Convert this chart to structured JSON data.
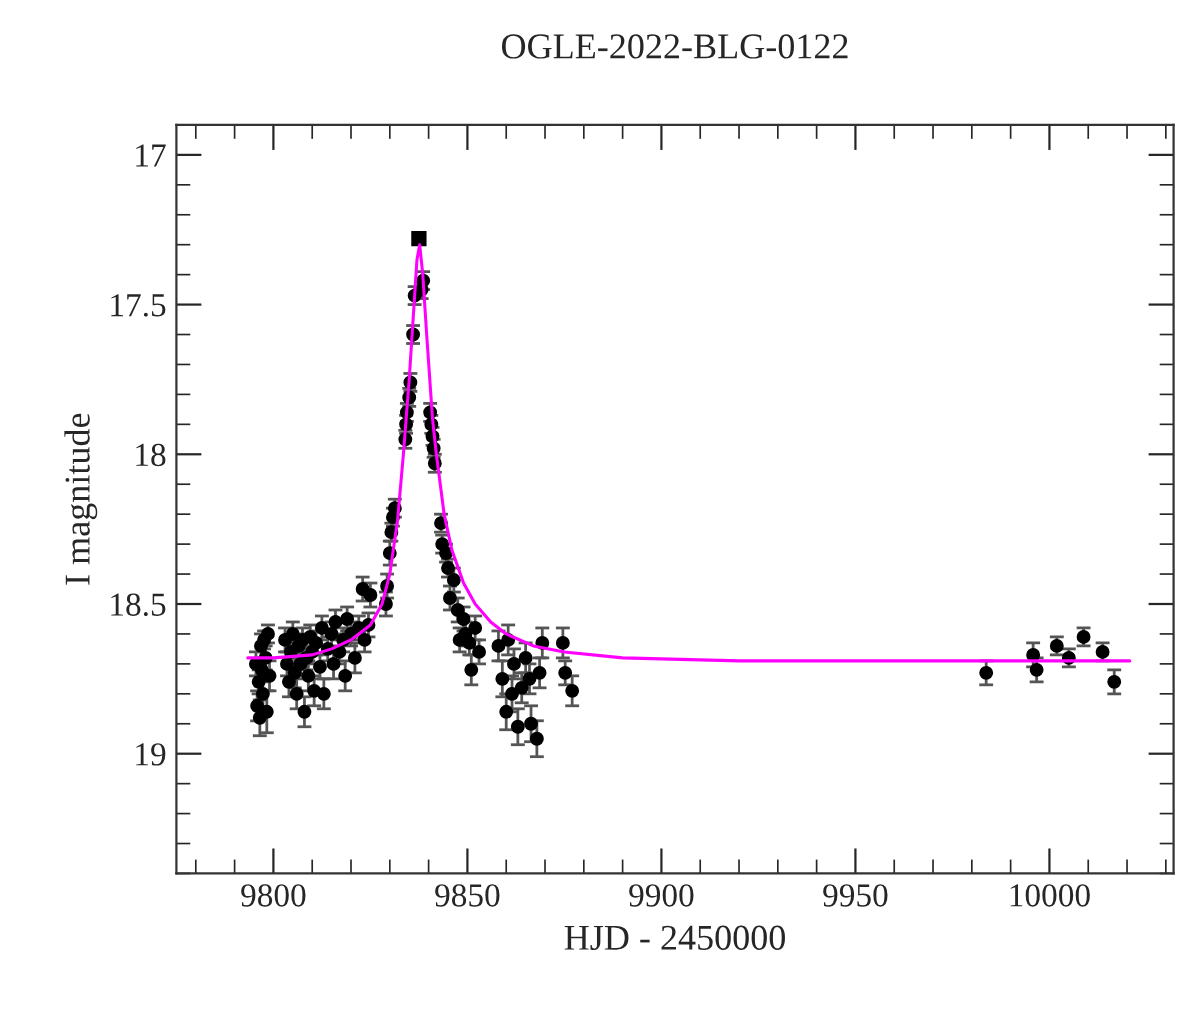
{
  "chart_data": {
    "type": "scatter",
    "title": "OGLE-2022-BLG-0122",
    "xlabel": "HJD - 2450000",
    "ylabel": "I magnitude",
    "xlim": [
      9775,
      10032
    ],
    "xticks": [
      9800,
      9850,
      9900,
      9950,
      10000
    ],
    "ylim": [
      19.4,
      16.9
    ],
    "yticks": [
      17,
      17.5,
      18,
      18.5,
      19
    ],
    "grid": false,
    "legend": false,
    "series": [
      {
        "marker": "circle",
        "color": "#000000",
        "x": [
          9795.5,
          9795.8,
          9796.2,
          9796.5,
          9796.8,
          9797.0,
          9797.3,
          9797.6,
          9798.0,
          9798.3,
          9798.6,
          9799.0,
          9803.0,
          9803.5,
          9804.0,
          9804.5,
          9805.0,
          9805.5,
          9806.0,
          9806.5,
          9807.0,
          9807.5,
          9808.0,
          9808.5,
          9809.0,
          9809.5,
          9810.0,
          9810.5,
          9811.0,
          9812.0,
          9812.5,
          9813.0,
          9814.0,
          9815.0,
          9815.5,
          9816.0,
          9817.0,
          9818.0,
          9818.5,
          9819.0,
          9820.0,
          9821.0,
          9822.0,
          9823.0,
          9823.5,
          9824.5,
          9825.0,
          9829.0,
          9829.3,
          9830.0,
          9830.4,
          9830.8,
          9831.3,
          9834.0,
          9834.2,
          9834.4,
          9835.0,
          9835.3,
          9836.0,
          9836.4,
          9838.2,
          9838.6,
          9840.4,
          9840.7,
          9841.0,
          9841.3,
          9841.6,
          9843.2,
          9843.5,
          9844.5,
          9845.0,
          9845.5,
          9846.5,
          9847.5,
          9848.0,
          9849.0,
          9849.5,
          9850.5,
          9851.0,
          9852.0,
          9853.0,
          9858.0,
          9859.0,
          9860.0,
          9860.5,
          9861.5,
          9862.0,
          9863.0,
          9864.0,
          9865.0,
          9866.0,
          9866.4,
          9867.9,
          9868.6,
          9869.3,
          9874.6,
          9875.2,
          9877.0,
          9983.7,
          9995.8,
          9996.7,
          10001.9,
          10005.0,
          10008.8,
          10013.7,
          10016.7
        ],
        "values": [
          18.7,
          18.84,
          18.76,
          18.88,
          18.64,
          18.72,
          18.8,
          18.62,
          18.68,
          18.86,
          18.6,
          18.74,
          18.62,
          18.7,
          18.76,
          18.66,
          18.6,
          18.73,
          18.8,
          18.64,
          18.7,
          18.62,
          18.86,
          18.68,
          18.74,
          18.61,
          18.66,
          18.79,
          18.63,
          18.71,
          18.58,
          18.8,
          18.65,
          18.6,
          18.7,
          18.56,
          18.66,
          18.62,
          18.74,
          18.55,
          18.6,
          18.68,
          18.58,
          18.45,
          18.62,
          18.57,
          18.47,
          18.5,
          18.44,
          18.33,
          18.26,
          18.21,
          18.18,
          17.95,
          17.9,
          17.86,
          17.81,
          17.76,
          17.6,
          17.47,
          17.45,
          17.42,
          17.86,
          17.9,
          17.94,
          17.98,
          18.03,
          18.23,
          18.3,
          18.33,
          18.38,
          18.48,
          18.42,
          18.52,
          18.62,
          18.55,
          18.6,
          18.63,
          18.72,
          18.58,
          18.66,
          18.64,
          18.75,
          18.86,
          18.62,
          18.8,
          18.7,
          18.91,
          18.78,
          18.68,
          18.75,
          18.9,
          18.95,
          18.73,
          18.63,
          18.63,
          18.73,
          18.79,
          18.73,
          18.67,
          18.72,
          18.64,
          18.68,
          18.61,
          18.66,
          18.76
        ],
        "errors": [
          0.04,
          0.05,
          0.04,
          0.06,
          0.04,
          0.04,
          0.05,
          0.03,
          0.04,
          0.07,
          0.03,
          0.05,
          0.04,
          0.04,
          0.05,
          0.04,
          0.04,
          0.05,
          0.05,
          0.04,
          0.04,
          0.04,
          0.05,
          0.04,
          0.05,
          0.04,
          0.04,
          0.05,
          0.04,
          0.04,
          0.04,
          0.05,
          0.04,
          0.04,
          0.05,
          0.04,
          0.04,
          0.04,
          0.05,
          0.04,
          0.04,
          0.05,
          0.04,
          0.04,
          0.04,
          0.04,
          0.04,
          0.04,
          0.04,
          0.04,
          0.03,
          0.03,
          0.03,
          0.03,
          0.03,
          0.03,
          0.03,
          0.03,
          0.03,
          0.03,
          0.03,
          0.03,
          0.03,
          0.03,
          0.03,
          0.03,
          0.03,
          0.03,
          0.03,
          0.03,
          0.03,
          0.04,
          0.04,
          0.04,
          0.04,
          0.04,
          0.04,
          0.04,
          0.05,
          0.04,
          0.04,
          0.05,
          0.06,
          0.06,
          0.05,
          0.06,
          0.05,
          0.06,
          0.05,
          0.05,
          0.05,
          0.06,
          0.06,
          0.05,
          0.05,
          0.05,
          0.04,
          0.05,
          0.04,
          0.04,
          0.04,
          0.03,
          0.03,
          0.03,
          0.03,
          0.04
        ]
      },
      {
        "marker": "square",
        "color": "#000000",
        "x": [
          9837.5
        ],
        "values": [
          17.28
        ],
        "errors": [
          0.02
        ]
      },
      {
        "type": "line",
        "marker": "none",
        "line_style": "solid",
        "color": "#ff00ff",
        "x": [
          9793.4,
          9800,
          9810,
          9815,
          9820,
          9825,
          9828,
          9830,
          9832,
          9833.5,
          9835,
          9836,
          9837,
          9837.7,
          9838.5,
          9839.5,
          9841,
          9842,
          9844,
          9846,
          9849,
          9852,
          9856,
          9860,
          9867,
          9875,
          9890,
          9920,
          9960,
          10020.7
        ],
        "values": [
          18.68,
          18.68,
          18.67,
          18.65,
          18.62,
          18.57,
          18.5,
          18.4,
          18.22,
          18.0,
          17.75,
          17.55,
          17.35,
          17.3,
          17.4,
          17.6,
          17.88,
          18.0,
          18.2,
          18.32,
          18.43,
          18.5,
          18.56,
          18.6,
          18.64,
          18.66,
          18.68,
          18.69,
          18.69,
          18.69
        ]
      }
    ]
  }
}
